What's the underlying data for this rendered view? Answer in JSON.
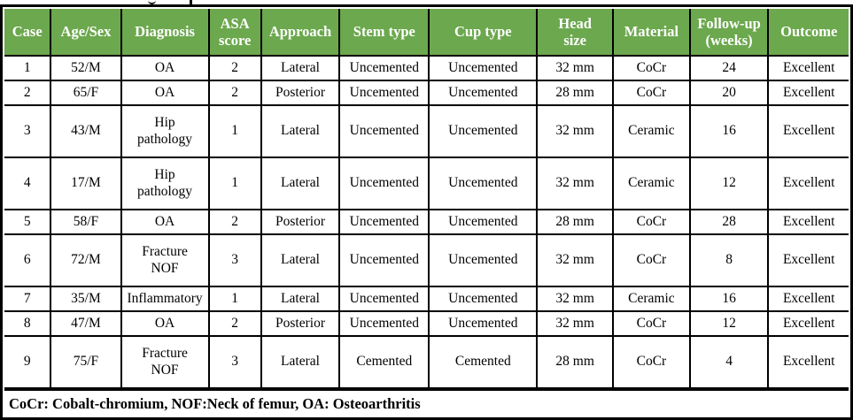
{
  "table": {
    "header_bg": "#6CA84E",
    "header_text_color": "#FFFFFF",
    "border_color": "#000000",
    "columns": [
      "Case",
      "Age/Sex",
      "Diagnosis",
      "ASA\nscore",
      "Approach",
      "Stem type",
      "Cup type",
      "Head\nsize",
      "Material",
      "Follow-up\n(weeks)",
      "Outcome"
    ],
    "column_widths_pct": [
      5.5,
      8.3,
      10.4,
      6.2,
      9.3,
      10.6,
      12.8,
      9.0,
      9.1,
      9.3,
      9.5
    ],
    "rows": [
      [
        "1",
        "52/M",
        "OA",
        "2",
        "Lateral",
        "Uncemented",
        "Uncemented",
        "32 mm",
        "CoCr",
        "24",
        "Excellent"
      ],
      [
        "2",
        "65/F",
        "OA",
        "2",
        "Posterior",
        "Uncemented",
        "Uncemented",
        "28 mm",
        "CoCr",
        "20",
        "Excellent"
      ],
      [
        "3",
        "43/M",
        "Hip\npathology",
        "1",
        "Lateral",
        "Uncemented",
        "Uncemented",
        "32 mm",
        "Ceramic",
        "16",
        "Excellent"
      ],
      [
        "4",
        "17/M",
        "Hip\npathology",
        "1",
        "Lateral",
        "Uncemented",
        "Uncemented",
        "32 mm",
        "Ceramic",
        "12",
        "Excellent"
      ],
      [
        "5",
        "58/F",
        "OA",
        "2",
        "Posterior",
        "Uncemented",
        "Uncemented",
        "28 mm",
        "CoCr",
        "28",
        "Excellent"
      ],
      [
        "6",
        "72/M",
        "Fracture\nNOF",
        "3",
        "Lateral",
        "Uncemented",
        "Uncemented",
        "32 mm",
        "CoCr",
        "8",
        "Excellent"
      ],
      [
        "7",
        "35/M",
        "Inflammatory",
        "1",
        "Lateral",
        "Uncemented",
        "Uncemented",
        "32 mm",
        "Ceramic",
        "16",
        "Excellent"
      ],
      [
        "8",
        "47/M",
        "OA",
        "2",
        "Posterior",
        "Uncemented",
        "Uncemented",
        "32 mm",
        "CoCr",
        "12",
        "Excellent"
      ],
      [
        "9",
        "75/F",
        "Fracture\nNOF",
        "3",
        "Lateral",
        "Cemented",
        "Cemented",
        "28 mm",
        "CoCr",
        "4",
        "Excellent"
      ]
    ],
    "footnote": "CoCr: Cobalt-chromium, NOF:Neck of femur, OA: Osteoarthritis"
  }
}
